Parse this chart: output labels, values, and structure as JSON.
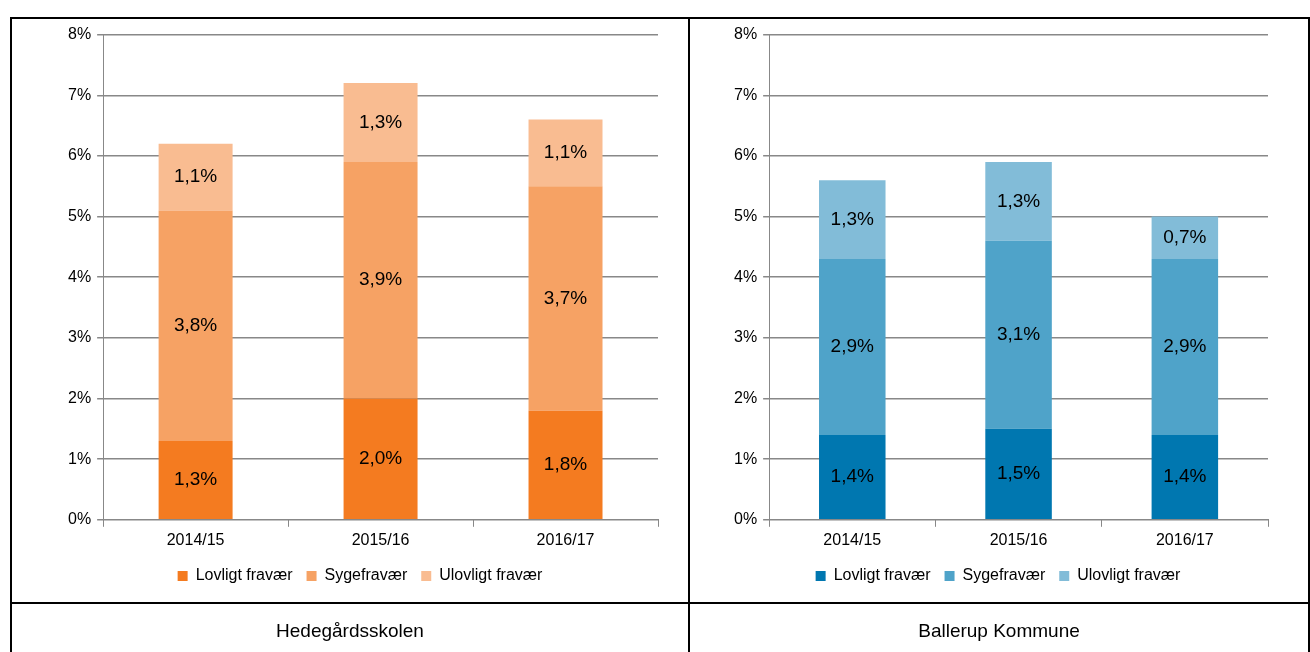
{
  "chart_data": [
    {
      "type": "bar",
      "title": "Hedegårdsskolen",
      "categories": [
        "2014/15",
        "2015/16",
        "2016/17"
      ],
      "stacked": true,
      "legend": "bottom",
      "grid": "y",
      "ylim": [
        0,
        8
      ],
      "yticks": [
        {
          "value": 0,
          "label": "0%"
        },
        {
          "value": 1,
          "label": "1%"
        },
        {
          "value": 2,
          "label": "2%"
        },
        {
          "value": 3,
          "label": "3%"
        },
        {
          "value": 4,
          "label": "4%"
        },
        {
          "value": 5,
          "label": "5%"
        },
        {
          "value": 6,
          "label": "6%"
        },
        {
          "value": 7,
          "label": "7%"
        },
        {
          "value": 8,
          "label": "8%"
        }
      ],
      "series": [
        {
          "name": "Lovligt fravær",
          "color": "#f47b20",
          "values": [
            1.3,
            2.0,
            1.8
          ],
          "value_labels": [
            "1,3%",
            "2,0%",
            "1,8%"
          ]
        },
        {
          "name": "Sygefravær",
          "color": "#f6a264",
          "values": [
            3.8,
            3.9,
            3.7
          ],
          "value_labels": [
            "3,8%",
            "3,9%",
            "3,7%"
          ]
        },
        {
          "name": "Ulovligt fravær",
          "color": "#f9bc91",
          "values": [
            1.1,
            1.3,
            1.1
          ],
          "value_labels": [
            "1,1%",
            "1,3%",
            "1,1%"
          ]
        }
      ]
    },
    {
      "type": "bar",
      "title": "Ballerup Kommune",
      "categories": [
        "2014/15",
        "2015/16",
        "2016/17"
      ],
      "stacked": true,
      "legend": "bottom",
      "grid": "y",
      "ylim": [
        0,
        8
      ],
      "yticks": [
        {
          "value": 0,
          "label": "0%"
        },
        {
          "value": 1,
          "label": "1%"
        },
        {
          "value": 2,
          "label": "2%"
        },
        {
          "value": 3,
          "label": "3%"
        },
        {
          "value": 4,
          "label": "4%"
        },
        {
          "value": 5,
          "label": "5%"
        },
        {
          "value": 6,
          "label": "6%"
        },
        {
          "value": 7,
          "label": "7%"
        },
        {
          "value": 8,
          "label": "8%"
        }
      ],
      "series": [
        {
          "name": "Lovligt fravær",
          "color": "#0077b0",
          "values": [
            1.4,
            1.5,
            1.4
          ],
          "value_labels": [
            "1,4%",
            "1,5%",
            "1,4%"
          ]
        },
        {
          "name": "Sygefravær",
          "color": "#4fa3c9",
          "values": [
            2.9,
            3.1,
            2.9
          ],
          "value_labels": [
            "2,9%",
            "3,1%",
            "2,9%"
          ]
        },
        {
          "name": "Ulovligt fravær",
          "color": "#82bcd8",
          "values": [
            1.3,
            1.3,
            0.7
          ],
          "value_labels": [
            "1,3%",
            "1,3%",
            "0,7%"
          ]
        }
      ]
    }
  ]
}
